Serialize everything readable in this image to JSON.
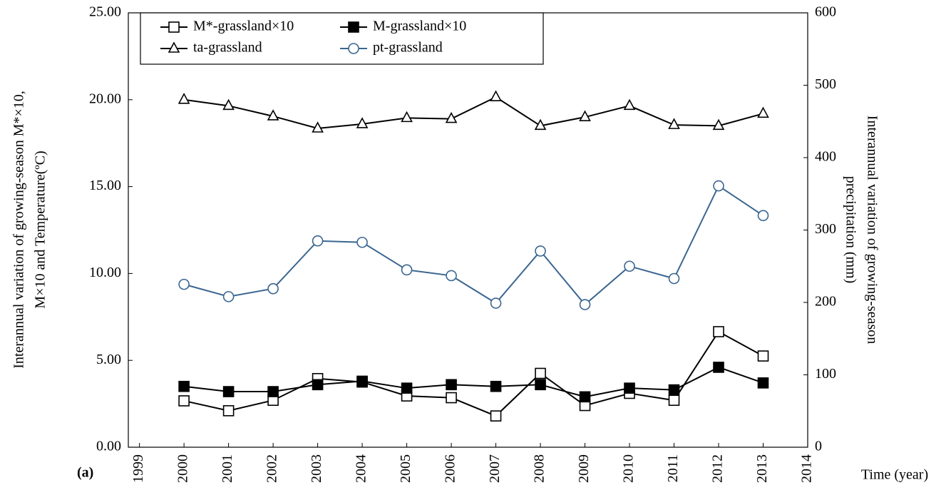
{
  "chart_data": {
    "type": "line",
    "x": [
      2000,
      2001,
      2002,
      2003,
      2004,
      2005,
      2006,
      2007,
      2008,
      2009,
      2010,
      2011,
      2012,
      2013
    ],
    "series": [
      {
        "name": "M*-grassland×10",
        "color": "#000000",
        "marker": "square",
        "marker_fill": "#ffffff",
        "values": [
          2.67,
          2.1,
          2.7,
          3.95,
          3.75,
          2.95,
          2.85,
          1.8,
          4.25,
          2.4,
          3.1,
          2.7,
          6.65,
          5.25
        ]
      },
      {
        "name": "M-grassland×10",
        "color": "#000000",
        "marker": "square",
        "marker_fill": "#000000",
        "values": [
          3.5,
          3.2,
          3.2,
          3.6,
          3.8,
          3.4,
          3.6,
          3.5,
          3.6,
          2.9,
          3.4,
          3.3,
          4.6,
          3.7
        ]
      },
      {
        "name": "ta-grassland",
        "color": "#000000",
        "marker": "triangle",
        "marker_fill": "#ffffff",
        "values": [
          20.0,
          19.65,
          19.05,
          18.35,
          18.6,
          18.95,
          18.9,
          20.15,
          18.5,
          19.0,
          19.65,
          18.55,
          18.5,
          19.2
        ]
      },
      {
        "name": "pt-grassland",
        "color": "#3b6690",
        "marker": "circle",
        "marker_fill": "#ffffff",
        "axis": "y2",
        "values": [
          225,
          208,
          219,
          285,
          283,
          245,
          237,
          199,
          271,
          197,
          250,
          233,
          361,
          320
        ]
      }
    ],
    "xlim": [
      1998.75,
      2014
    ],
    "xticks": [
      1999,
      2000,
      2001,
      2002,
      2003,
      2004,
      2005,
      2006,
      2007,
      2008,
      2009,
      2010,
      2011,
      2012,
      2013,
      2014
    ],
    "ylim": [
      0,
      25
    ],
    "yticks": [
      {
        "value": 0,
        "label": "0.00"
      },
      {
        "value": 5,
        "label": "5.00"
      },
      {
        "value": 10,
        "label": "10.00"
      },
      {
        "value": 15,
        "label": "15.00"
      },
      {
        "value": 20,
        "label": "20.00"
      },
      {
        "value": 25,
        "label": "25.00"
      }
    ],
    "y2lim": [
      0,
      600
    ],
    "y2ticks": [
      0,
      100,
      200,
      300,
      400,
      500,
      600
    ],
    "ylabel": [
      "Interannual variation of growing-season M*×10,",
      "M×10 and Temperature(ºC)"
    ],
    "y2label": [
      "Interannual variation of growing-season",
      "precipitation (mm)"
    ],
    "xlabel": "Time (year)",
    "panel_label": "(a)",
    "legend": "upper left"
  }
}
